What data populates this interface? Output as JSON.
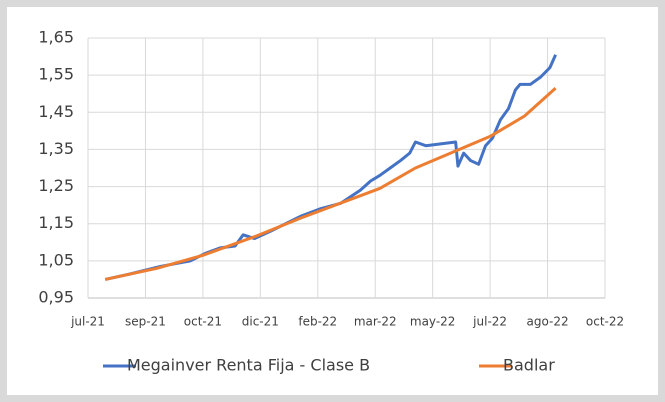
{
  "chart_data": {
    "type": "line",
    "xlim": [
      0,
      450
    ],
    "xticks": [
      {
        "value": 0,
        "label": "jul-21"
      },
      {
        "value": 50,
        "label": "sep-21"
      },
      {
        "value": 100,
        "label": "oct-21"
      },
      {
        "value": 150,
        "label": "dic-21"
      },
      {
        "value": 200,
        "label": "feb-22"
      },
      {
        "value": 250,
        "label": "mar-22"
      },
      {
        "value": 300,
        "label": "may-22"
      },
      {
        "value": 350,
        "label": "jul-22"
      },
      {
        "value": 400,
        "label": "ago-22"
      },
      {
        "value": 450,
        "label": "oct-22"
      }
    ],
    "ylim": [
      0.95,
      1.65
    ],
    "yticks": [
      {
        "value": 0.95,
        "label": "0,95"
      },
      {
        "value": 1.05,
        "label": "1,05"
      },
      {
        "value": 1.15,
        "label": "1,15"
      },
      {
        "value": 1.25,
        "label": "1,25"
      },
      {
        "value": 1.35,
        "label": "1,35"
      },
      {
        "value": 1.45,
        "label": "1,45"
      },
      {
        "value": 1.55,
        "label": "1,55"
      },
      {
        "value": 1.65,
        "label": "1,65"
      }
    ],
    "grid": true,
    "legend": "bottom",
    "series": [
      {
        "name": "Megainver Renta Fija - Clase B",
        "color": "#4472c4",
        "x": [
          15,
          37,
          63,
          89,
          102,
          115,
          128,
          135,
          145,
          159,
          185,
          202,
          220,
          237,
          246,
          254,
          263,
          272,
          280,
          285,
          294,
          307,
          320,
          322,
          327,
          333,
          340,
          346,
          352,
          359,
          366,
          372,
          376,
          385,
          394,
          402,
          407
        ],
        "values": [
          1.0,
          1.015,
          1.035,
          1.05,
          1.07,
          1.085,
          1.09,
          1.12,
          1.11,
          1.13,
          1.17,
          1.19,
          1.205,
          1.24,
          1.265,
          1.28,
          1.3,
          1.32,
          1.34,
          1.37,
          1.36,
          1.365,
          1.37,
          1.305,
          1.34,
          1.32,
          1.31,
          1.36,
          1.38,
          1.43,
          1.46,
          1.51,
          1.525,
          1.525,
          1.545,
          1.57,
          1.605
        ]
      },
      {
        "name": "Badlar",
        "color": "#ed7d31",
        "x": [
          15,
          60,
          100,
          145,
          185,
          254,
          285,
          350,
          380,
          407
        ],
        "values": [
          1.0,
          1.03,
          1.065,
          1.115,
          1.165,
          1.245,
          1.3,
          1.385,
          1.44,
          1.515
        ]
      }
    ]
  }
}
